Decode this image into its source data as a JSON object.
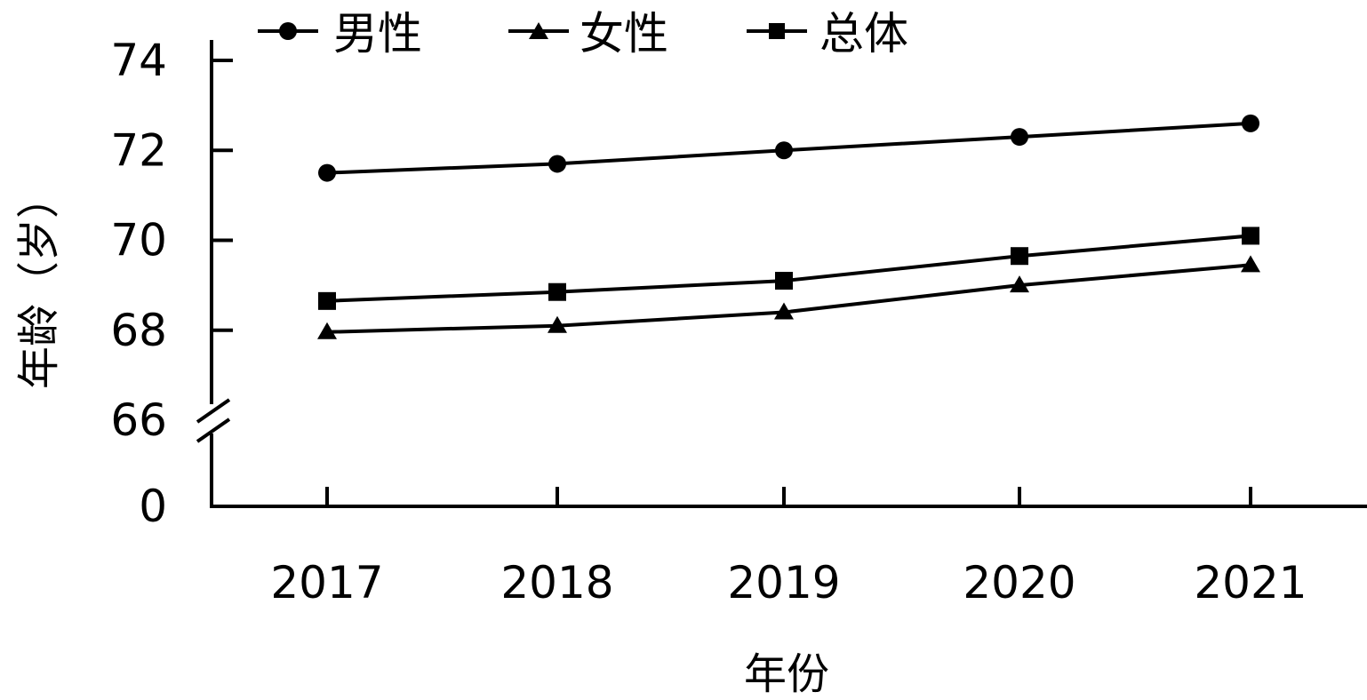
{
  "chart_data": {
    "type": "line",
    "title": "",
    "xlabel": "年份",
    "ylabel": "年龄（岁）",
    "categories": [
      "2017",
      "2018",
      "2019",
      "2020",
      "2021"
    ],
    "y_ticks": [
      "0",
      "66",
      "68",
      "70",
      "72",
      "74"
    ],
    "ylim": [
      66,
      74
    ],
    "axis_break": true,
    "grid": false,
    "legend_position": "top",
    "series": [
      {
        "name": "男性",
        "marker": "circle",
        "values": [
          71.5,
          71.7,
          72.0,
          72.3,
          72.6
        ]
      },
      {
        "name": "女性",
        "marker": "triangle",
        "values": [
          67.96,
          68.1,
          68.4,
          69.0,
          69.45
        ]
      },
      {
        "name": "总体",
        "marker": "square",
        "values": [
          68.65,
          68.85,
          69.1,
          69.65,
          70.1
        ]
      }
    ],
    "line_color": "#000000"
  }
}
